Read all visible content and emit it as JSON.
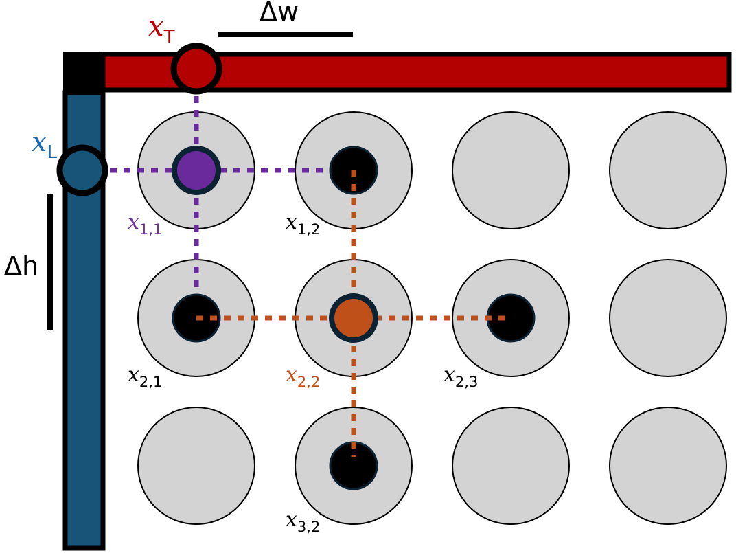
{
  "colors": {
    "top_bar": "#b30000",
    "left_bar": "#185478",
    "frame": "#000000",
    "cell_outer": "#d3d3d3",
    "cell_inner": "#000000",
    "inner_ring": "#0b2233",
    "current_1_1": "#6a2a9c",
    "current_2_2": "#c0501a",
    "label_top": "#c00000",
    "label_left": "#1a6ab0",
    "label_1_1": "#7030a0",
    "label_2_2": "#c0501a",
    "label_default": "#000000"
  },
  "labels": {
    "delta_w": "Δw",
    "delta_h": "Δh",
    "x_T": {
      "base": "x",
      "sub": "T"
    },
    "x_L": {
      "base": "x",
      "sub": "L"
    },
    "x_1_1": {
      "base": "x",
      "sub": "1,1"
    },
    "x_1_2": {
      "base": "x",
      "sub": "1,2"
    },
    "x_2_1": {
      "base": "x",
      "sub": "2,1"
    },
    "x_2_2": {
      "base": "x",
      "sub": "2,2"
    },
    "x_2_3": {
      "base": "x",
      "sub": "2,3"
    },
    "x_3_2": {
      "base": "x",
      "sub": "3,2"
    }
  },
  "grid": {
    "rows": 3,
    "cols": 4,
    "active_cells": [
      [
        1,
        1
      ],
      [
        1,
        2
      ],
      [
        2,
        1
      ],
      [
        2,
        2
      ],
      [
        2,
        3
      ],
      [
        3,
        2
      ]
    ],
    "highlighted_cells": [
      [
        1,
        1
      ],
      [
        2,
        2
      ]
    ]
  }
}
